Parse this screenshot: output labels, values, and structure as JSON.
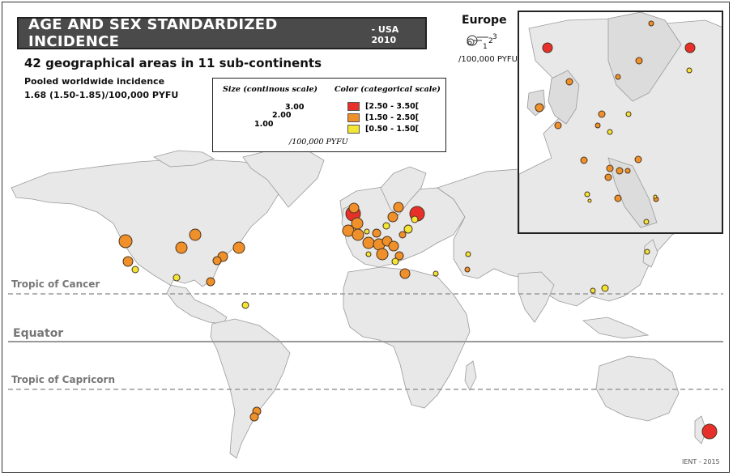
{
  "title": {
    "main": "AGE AND SEX  STANDARDIZED INCIDENCE",
    "sub": "- USA 2010"
  },
  "subtitle": "42 geographical areas in 11 sub-continents",
  "pooled": {
    "line1": "Pooled worldwide incidence",
    "line2": "1.68 (1.50-1.85)/100,000 PYFU"
  },
  "legend": {
    "size_title": "Size (continous scale)",
    "size_values": [
      "3.00",
      "2.00",
      "1.00"
    ],
    "color_title": "Color (categorical scale)",
    "classes": [
      {
        "label": "[2.50 - 3.50[",
        "color": "#e8302a"
      },
      {
        "label": "[1.50 - 2.50[",
        "color": "#f0902a"
      },
      {
        "label": "[0.50 - 1.50[",
        "color": "#f2e534"
      }
    ],
    "unit": "/100,000 PYFU"
  },
  "inset": {
    "title": "Europe",
    "size_key": [
      "1",
      "2",
      "3"
    ],
    "unit": "/100,000 PYFU"
  },
  "reference_lines": {
    "tropic_cancer": "Tropic of Cancer",
    "equator": "Equator",
    "tropic_capricorn": "Tropic of Capricorn"
  },
  "credit": "IENT - 2015",
  "colors": {
    "land": "#e8e8e8",
    "border": "#9a9a9a",
    "title_bg": "#4a4a4a"
  }
}
